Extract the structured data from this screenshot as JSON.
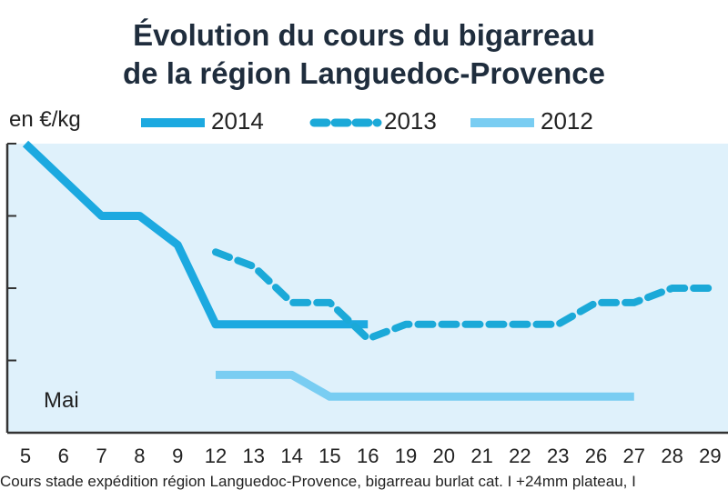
{
  "chart_data": {
    "type": "line",
    "title_line1": "Évolution du cours du bigarreau",
    "title_line2": "de la région Languedoc-Provence",
    "ylabel": "en €/kg",
    "annotation": "Mai",
    "footnote": "Cours stade expédition région Languedoc-Provence, bigarreau burlat cat. I +24mm plateau, I",
    "categories": [
      "5",
      "6",
      "7",
      "8",
      "9",
      "12",
      "13",
      "14",
      "15",
      "16",
      "19",
      "20",
      "21",
      "22",
      "23",
      "26",
      "27",
      "28",
      "29"
    ],
    "ylim": [
      0,
      4
    ],
    "grid": false,
    "legend_position": "top",
    "colors": {
      "2014": "#1ca9e0",
      "2013": "#1ba9d8",
      "2012": "#79cdf2",
      "background": "#dff1fb",
      "axis": "#333333"
    },
    "series": [
      {
        "name": "2014",
        "style": "solid",
        "values": [
          4.0,
          3.5,
          3.0,
          3.0,
          2.6,
          1.5,
          1.5,
          1.5,
          1.5,
          1.5,
          null,
          null,
          null,
          null,
          null,
          null,
          null,
          null,
          null
        ]
      },
      {
        "name": "2013",
        "style": "dashed",
        "values": [
          null,
          null,
          null,
          null,
          null,
          2.5,
          2.3,
          1.8,
          1.8,
          1.3,
          1.5,
          1.5,
          1.5,
          1.5,
          1.5,
          1.8,
          1.8,
          2.0,
          2.0
        ]
      },
      {
        "name": "2012",
        "style": "solid-light",
        "values": [
          null,
          null,
          null,
          null,
          null,
          0.8,
          0.8,
          0.8,
          0.5,
          0.5,
          0.5,
          0.5,
          0.5,
          0.5,
          0.5,
          0.5,
          0.5,
          null,
          null
        ]
      }
    ]
  }
}
